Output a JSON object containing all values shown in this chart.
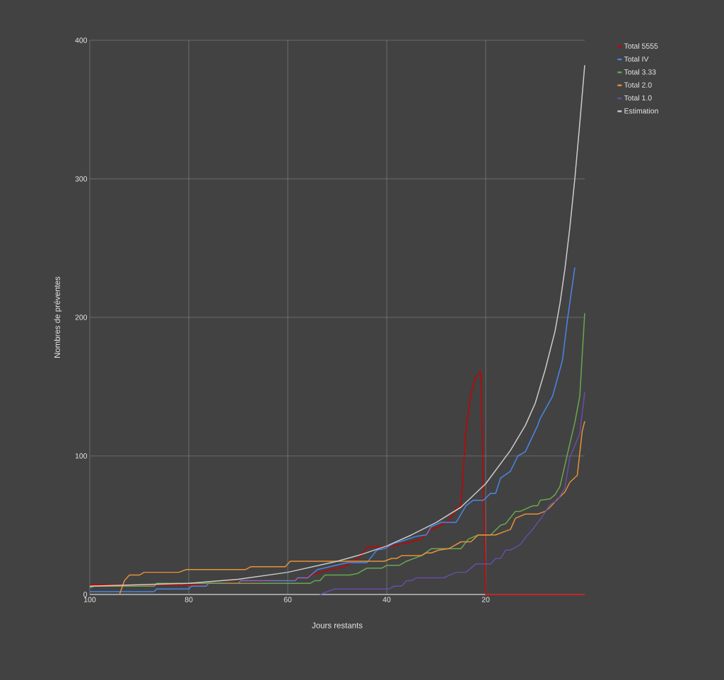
{
  "chart_data": {
    "type": "line",
    "xlabel": "Jours restants",
    "ylabel": "Nombres de préventes",
    "xlim": [
      100,
      0
    ],
    "ylim": [
      0,
      400
    ],
    "xticks": [
      100,
      80,
      60,
      40,
      20
    ],
    "yticks": [
      0,
      100,
      200,
      300,
      400
    ],
    "grid": true,
    "legend": "top right",
    "marker": "none",
    "line_style": "solid",
    "series": [
      {
        "name": "Total 5555",
        "color": "#cc0000",
        "x": [
          100,
          80,
          70,
          59.5,
          58,
          55,
          52.5,
          48.5,
          45.5,
          44,
          40.5,
          39,
          35,
          33,
          31,
          29.5,
          27.5,
          26,
          25,
          24,
          23,
          22,
          21,
          20,
          0
        ],
        "values": [
          7,
          7,
          9,
          10,
          11,
          14,
          17,
          20,
          27,
          34,
          34,
          35,
          38,
          40,
          47,
          49,
          53,
          62,
          64,
          118,
          145,
          157,
          161,
          0,
          0
        ]
      },
      {
        "name": "Total IV",
        "color": "#4a86e8",
        "x": [
          100,
          87,
          86.5,
          80,
          79.5,
          76.5,
          76,
          70,
          69.5,
          58.5,
          58,
          56,
          54,
          51.5,
          48,
          44,
          42,
          40.5,
          38.5,
          36.5,
          34,
          32,
          31,
          29,
          26,
          24,
          22.5,
          20.5,
          19,
          18,
          17,
          15,
          13.5,
          12,
          9.5,
          9,
          6.5,
          4.5,
          3.5,
          2
        ],
        "values": [
          2,
          2,
          4,
          4,
          6,
          6,
          8,
          8,
          10,
          10,
          12,
          12,
          18,
          20,
          23,
          23,
          32,
          33,
          37,
          39,
          42,
          43,
          49,
          52,
          52,
          64,
          68,
          68,
          73,
          73,
          84,
          89,
          100,
          103,
          122,
          127,
          143,
          169,
          198,
          236
        ]
      },
      {
        "name": "Total 3.33",
        "color": "#6aa84f",
        "x": [
          100,
          99,
          87,
          86.5,
          55.5,
          54.5,
          53.5,
          52.5,
          47.5,
          46,
          44,
          41,
          40,
          37.5,
          36,
          33,
          31,
          25,
          23.5,
          21.5,
          19,
          17,
          16,
          14,
          13,
          10.5,
          9.5,
          9,
          7,
          6,
          5,
          3,
          2,
          1,
          0
        ],
        "values": [
          5,
          6,
          6,
          8,
          8,
          10,
          10,
          14,
          14,
          15,
          19,
          19,
          21,
          21,
          24,
          28,
          33,
          33,
          40,
          43,
          43,
          50,
          51,
          60,
          60,
          64,
          64,
          68,
          69,
          72,
          78,
          109,
          124,
          143,
          203
        ]
      },
      {
        "name": "Total 2.0",
        "color": "#e69138",
        "x": [
          94,
          93,
          92,
          90,
          89,
          82,
          80.5,
          68.5,
          67.5,
          60.5,
          59.5,
          40.5,
          39,
          38,
          37,
          33,
          32,
          31,
          29.5,
          27.5,
          25,
          23,
          21.5,
          18,
          15,
          14,
          12,
          9.5,
          8,
          7,
          6,
          4,
          3,
          1.5,
          0.5,
          0
        ],
        "values": [
          0,
          10,
          14,
          14,
          16,
          16,
          18,
          18,
          20,
          20,
          24,
          24,
          26,
          26,
          28,
          28,
          30,
          30,
          32,
          33,
          38,
          38,
          43,
          43,
          47,
          55,
          58,
          58,
          60,
          63,
          67,
          74,
          81,
          86,
          118,
          125
        ]
      },
      {
        "name": "Total 1.0",
        "color": "#674ea7",
        "x": [
          53.5,
          52,
          50.5,
          39.5,
          38.5,
          37,
          36,
          35,
          34,
          28.5,
          26,
          24,
          22,
          19,
          18,
          17,
          16,
          15,
          13,
          12,
          10.5,
          9.5,
          9,
          7,
          5.5,
          4,
          3,
          1,
          0
        ],
        "values": [
          0,
          2,
          4,
          4,
          6,
          6,
          10,
          10,
          12,
          12,
          16,
          16,
          22,
          22,
          26,
          26,
          32,
          32,
          36,
          41,
          47,
          52,
          54,
          65,
          68,
          77,
          99,
          116,
          146
        ]
      },
      {
        "name": "Estimation",
        "color": "#cccccc",
        "x": [
          100,
          90,
          80,
          70,
          60,
          50,
          45,
          40,
          35,
          30,
          25,
          20,
          15,
          12,
          10,
          8,
          6,
          5,
          4,
          3,
          2,
          1,
          0
        ],
        "values": [
          6,
          7,
          8,
          11,
          16,
          24,
          29,
          35,
          43,
          52,
          63,
          80,
          104,
          122,
          138,
          162,
          190,
          210,
          235,
          265,
          300,
          340,
          382
        ]
      }
    ]
  }
}
